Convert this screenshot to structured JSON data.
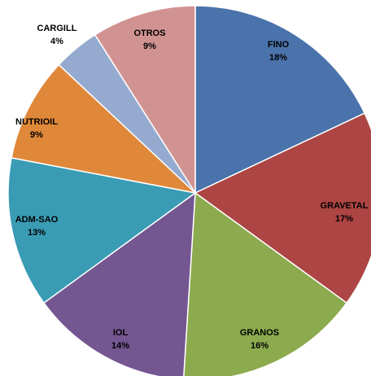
{
  "chart_data": {
    "type": "pie",
    "title": "",
    "slices": [
      {
        "label": "FINO",
        "value": 18,
        "value_label": "18%",
        "color": "#4A73AB"
      },
      {
        "label": "GRAVETAL",
        "value": 17,
        "value_label": "17%",
        "color": "#AC4543"
      },
      {
        "label": "GRANOS",
        "value": 16,
        "value_label": "16%",
        "color": "#8CAA4E"
      },
      {
        "label": "IOL",
        "value": 14,
        "value_label": "14%",
        "color": "#745691"
      },
      {
        "label": "ADM-SAO",
        "value": 13,
        "value_label": "13%",
        "color": "#3A9CB4"
      },
      {
        "label": "NUTRIOIL",
        "value": 9,
        "value_label": "9%",
        "color": "#E0883A"
      },
      {
        "label": "CARGILL",
        "value": 4,
        "value_label": "4%",
        "color": "#94AACF"
      },
      {
        "label": "OTROS",
        "value": 9,
        "value_label": "9%",
        "color": "#D19391"
      }
    ]
  }
}
